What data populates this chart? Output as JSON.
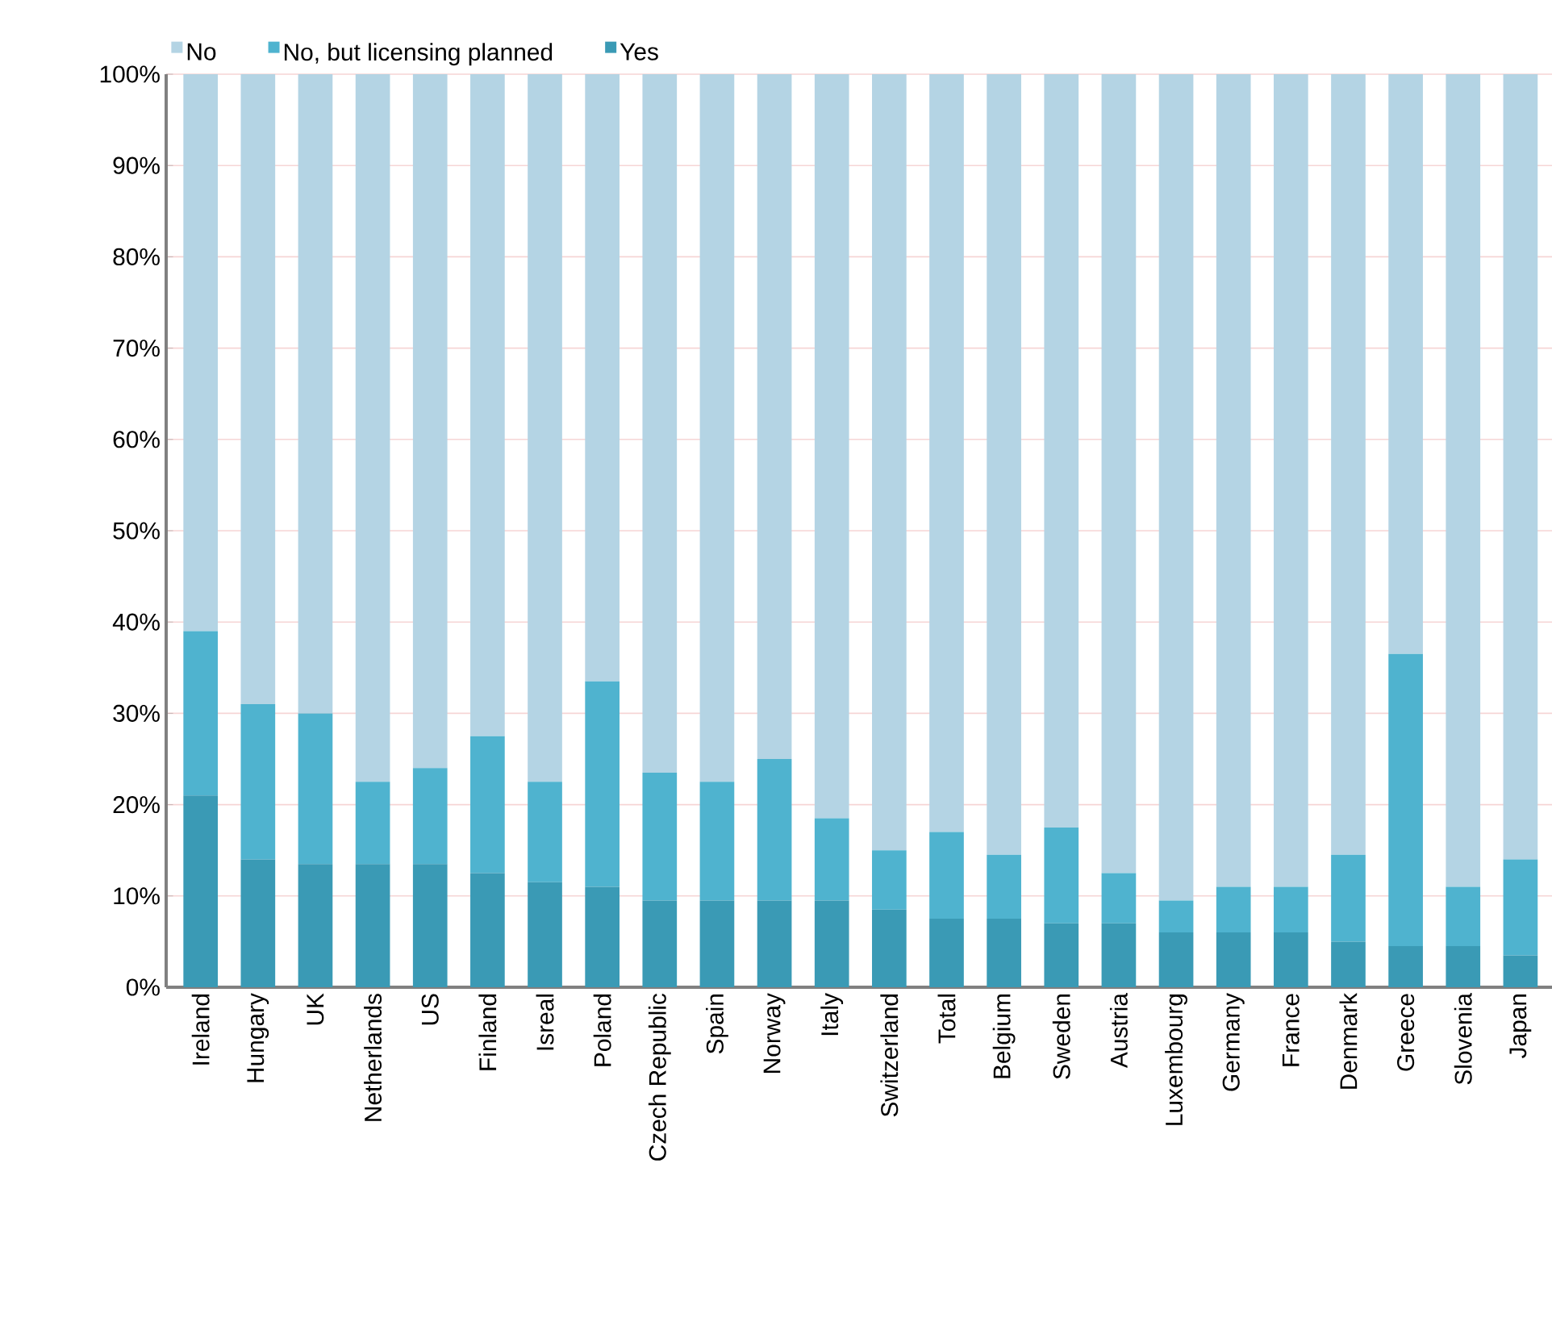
{
  "chart_data": {
    "type": "bar",
    "stacked": true,
    "categories": [
      "Ireland",
      "Hungary",
      "UK",
      "Netherlands",
      "US",
      "Finland",
      "Isreal",
      "Poland",
      "Czech Republic",
      "Spain",
      "Norway",
      "Italy",
      "Switzerland",
      "Total",
      "Belgium",
      "Sweden",
      "Austria",
      "Luxembourg",
      "Germany",
      "France",
      "Denmark",
      "Greece",
      "Slovenia",
      "Japan"
    ],
    "series": [
      {
        "name": "Yes",
        "color": "#3a9ab5",
        "values": [
          21,
          14,
          13.5,
          13.5,
          13.5,
          12.5,
          11.5,
          11,
          9.5,
          9.5,
          9.5,
          9.5,
          8.5,
          7.5,
          7.5,
          7,
          7,
          6,
          6,
          6,
          5,
          4.5,
          4.5,
          3.5
        ]
      },
      {
        "name": "No, but licensing planned",
        "color": "#4fb3cf",
        "values": [
          18,
          17,
          16.5,
          9,
          10.5,
          15,
          11,
          22.5,
          14,
          13,
          15.5,
          9,
          6.5,
          9.5,
          7,
          10.5,
          5.5,
          3.5,
          5,
          5,
          9.5,
          32,
          6.5,
          10.5
        ]
      },
      {
        "name": "No",
        "color": "#b4d4e4",
        "values": [
          61,
          69,
          70,
          77.5,
          76,
          72.5,
          77.5,
          66.5,
          76.5,
          77.5,
          75,
          81.5,
          85,
          83,
          85.5,
          82.5,
          87.5,
          90.5,
          89,
          89,
          85.5,
          63.5,
          89,
          86
        ]
      }
    ],
    "ylim": [
      0,
      100
    ],
    "yticks": [
      {
        "value": 0,
        "label": "0%"
      },
      {
        "value": 10,
        "label": "10%"
      },
      {
        "value": 20,
        "label": "20%"
      },
      {
        "value": 30,
        "label": "30%"
      },
      {
        "value": 40,
        "label": "40%"
      },
      {
        "value": 50,
        "label": "50%"
      },
      {
        "value": 60,
        "label": "60%"
      },
      {
        "value": 70,
        "label": "70%"
      },
      {
        "value": 80,
        "label": "80%"
      },
      {
        "value": 90,
        "label": "90%"
      },
      {
        "value": 100,
        "label": "100%"
      }
    ],
    "grid": "y",
    "legend": "top left"
  }
}
